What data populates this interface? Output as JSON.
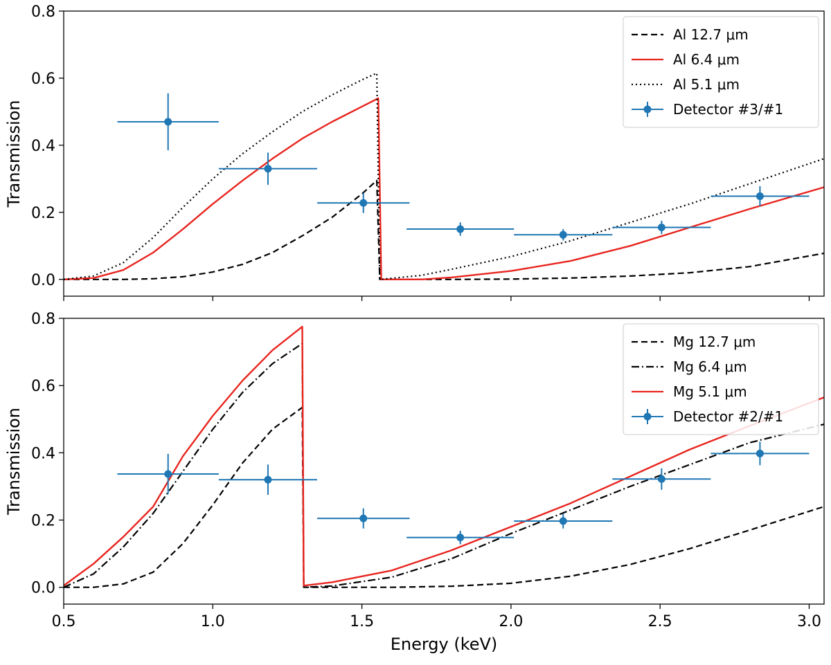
{
  "chart_data": [
    {
      "type": "line",
      "panel": "top",
      "xlabel": "",
      "ylabel": "Transmission",
      "xlim": [
        0.5,
        3.05
      ],
      "ylim": [
        -0.05,
        0.8
      ],
      "xticks": [
        0.5,
        1.0,
        1.5,
        2.0,
        2.5,
        3.0
      ],
      "xticklabels": [
        "",
        "",
        "",
        "",
        "",
        ""
      ],
      "yticks": [
        0.0,
        0.2,
        0.4,
        0.6,
        0.8
      ],
      "yticklabels": [
        "0.0",
        "0.2",
        "0.4",
        "0.6",
        "0.8"
      ],
      "legend_position": "top-right",
      "series": [
        {
          "name": "Al 12.7 μm",
          "style": "dashed",
          "color": "#000000",
          "x": [
            0.5,
            0.6,
            0.7,
            0.8,
            0.9,
            1.0,
            1.1,
            1.2,
            1.3,
            1.4,
            1.5,
            1.55,
            1.56,
            1.65,
            1.8,
            2.0,
            2.2,
            2.4,
            2.6,
            2.8,
            3.05
          ],
          "y": [
            0.0,
            0.0,
            0.0,
            0.002,
            0.008,
            0.022,
            0.045,
            0.08,
            0.13,
            0.185,
            0.255,
            0.295,
            0.0,
            0.0,
            0.0,
            0.001,
            0.004,
            0.01,
            0.02,
            0.038,
            0.078
          ]
        },
        {
          "name": "Al 6.4 μm",
          "style": "solid",
          "color": "#e8241e",
          "x": [
            0.5,
            0.6,
            0.7,
            0.8,
            0.9,
            1.0,
            1.1,
            1.2,
            1.3,
            1.4,
            1.5,
            1.555,
            1.565,
            1.7,
            1.8,
            2.0,
            2.2,
            2.4,
            2.6,
            2.8,
            3.05
          ],
          "y": [
            0.0,
            0.004,
            0.028,
            0.08,
            0.15,
            0.225,
            0.295,
            0.36,
            0.42,
            0.47,
            0.515,
            0.54,
            0.0,
            0.0,
            0.006,
            0.025,
            0.055,
            0.1,
            0.155,
            0.21,
            0.275
          ]
        },
        {
          "name": "Al 5.1 μm",
          "style": "dotted",
          "color": "#000000",
          "x": [
            0.5,
            0.6,
            0.7,
            0.8,
            0.9,
            1.0,
            1.1,
            1.2,
            1.3,
            1.4,
            1.5,
            1.55,
            1.56,
            1.7,
            1.8,
            2.0,
            2.2,
            2.4,
            2.6,
            2.8,
            3.05
          ],
          "y": [
            0.0,
            0.01,
            0.05,
            0.125,
            0.215,
            0.3,
            0.375,
            0.44,
            0.5,
            0.55,
            0.595,
            0.615,
            0.0,
            0.012,
            0.03,
            0.068,
            0.115,
            0.17,
            0.225,
            0.285,
            0.36
          ]
        }
      ],
      "errorbar_series": {
        "name": "Detector #3/#1",
        "color": "#1f77b4",
        "points": [
          {
            "x": 0.85,
            "y": 0.47,
            "xerr": [
              0.17,
              0.17
            ],
            "yerr": 0.085
          },
          {
            "x": 1.185,
            "y": 0.33,
            "xerr": [
              0.165,
              0.165
            ],
            "yerr": 0.048
          },
          {
            "x": 1.505,
            "y": 0.228,
            "xerr": [
              0.155,
              0.155
            ],
            "yerr": 0.03
          },
          {
            "x": 1.83,
            "y": 0.15,
            "xerr": [
              0.18,
              0.18
            ],
            "yerr": 0.02
          },
          {
            "x": 2.175,
            "y": 0.133,
            "xerr": [
              0.165,
              0.165
            ],
            "yerr": 0.017
          },
          {
            "x": 2.505,
            "y": 0.155,
            "xerr": [
              0.165,
              0.165
            ],
            "yerr": 0.02
          },
          {
            "x": 2.835,
            "y": 0.248,
            "xerr": [
              0.165,
              0.165
            ],
            "yerr": 0.03
          }
        ]
      }
    },
    {
      "type": "line",
      "panel": "bottom",
      "xlabel": "Energy (keV)",
      "ylabel": "Transmission",
      "xlim": [
        0.5,
        3.05
      ],
      "ylim": [
        -0.05,
        0.8
      ],
      "xticks": [
        0.5,
        1.0,
        1.5,
        2.0,
        2.5,
        3.0
      ],
      "xticklabels": [
        "0.5",
        "1.0",
        "1.5",
        "2.0",
        "2.5",
        "3.0"
      ],
      "yticks": [
        0.0,
        0.2,
        0.4,
        0.6,
        0.8
      ],
      "yticklabels": [
        "0.0",
        "0.2",
        "0.4",
        "0.6",
        "0.8"
      ],
      "legend_position": "top-right",
      "series": [
        {
          "name": "Mg 12.7 μm",
          "style": "dashed",
          "color": "#000000",
          "x": [
            0.5,
            0.6,
            0.7,
            0.8,
            0.9,
            1.0,
            1.1,
            1.2,
            1.3,
            1.305,
            1.4,
            1.6,
            1.8,
            2.0,
            2.2,
            2.4,
            2.6,
            2.8,
            3.05
          ],
          "y": [
            0.0,
            0.0,
            0.01,
            0.045,
            0.13,
            0.245,
            0.37,
            0.47,
            0.535,
            0.0,
            0.0,
            0.0,
            0.003,
            0.012,
            0.033,
            0.068,
            0.115,
            0.17,
            0.24
          ]
        },
        {
          "name": "Mg 6.4 μm",
          "style": "dashdot",
          "color": "#000000",
          "x": [
            0.5,
            0.6,
            0.7,
            0.8,
            0.9,
            1.0,
            1.1,
            1.2,
            1.3,
            1.305,
            1.4,
            1.6,
            1.8,
            2.0,
            2.2,
            2.4,
            2.6,
            2.8,
            3.05
          ],
          "y": [
            0.0,
            0.04,
            0.12,
            0.22,
            0.345,
            0.47,
            0.58,
            0.665,
            0.725,
            0.0,
            0.004,
            0.03,
            0.085,
            0.16,
            0.23,
            0.3,
            0.365,
            0.43,
            0.485
          ]
        },
        {
          "name": "Mg 5.1 μm",
          "style": "solid",
          "color": "#e8241e",
          "x": [
            0.5,
            0.6,
            0.7,
            0.8,
            0.9,
            1.0,
            1.1,
            1.2,
            1.3,
            1.305,
            1.4,
            1.6,
            1.8,
            2.0,
            2.2,
            2.4,
            2.6,
            2.8,
            3.05
          ],
          "y": [
            0.005,
            0.07,
            0.15,
            0.24,
            0.39,
            0.51,
            0.615,
            0.705,
            0.775,
            0.005,
            0.015,
            0.05,
            0.11,
            0.18,
            0.25,
            0.33,
            0.41,
            0.48,
            0.565
          ]
        }
      ],
      "errorbar_series": {
        "name": "Detector #2/#1",
        "color": "#1f77b4",
        "points": [
          {
            "x": 0.85,
            "y": 0.337,
            "xerr": [
              0.17,
              0.17
            ],
            "yerr": 0.06
          },
          {
            "x": 1.185,
            "y": 0.32,
            "xerr": [
              0.165,
              0.165
            ],
            "yerr": 0.045
          },
          {
            "x": 1.505,
            "y": 0.205,
            "xerr": [
              0.155,
              0.155
            ],
            "yerr": 0.03
          },
          {
            "x": 1.83,
            "y": 0.148,
            "xerr": [
              0.18,
              0.18
            ],
            "yerr": 0.02
          },
          {
            "x": 2.175,
            "y": 0.197,
            "xerr": [
              0.165,
              0.165
            ],
            "yerr": 0.022
          },
          {
            "x": 2.505,
            "y": 0.322,
            "xerr": [
              0.165,
              0.165
            ],
            "yerr": 0.032
          },
          {
            "x": 2.835,
            "y": 0.398,
            "xerr": [
              0.165,
              0.165
            ],
            "yerr": 0.035
          }
        ]
      }
    }
  ]
}
